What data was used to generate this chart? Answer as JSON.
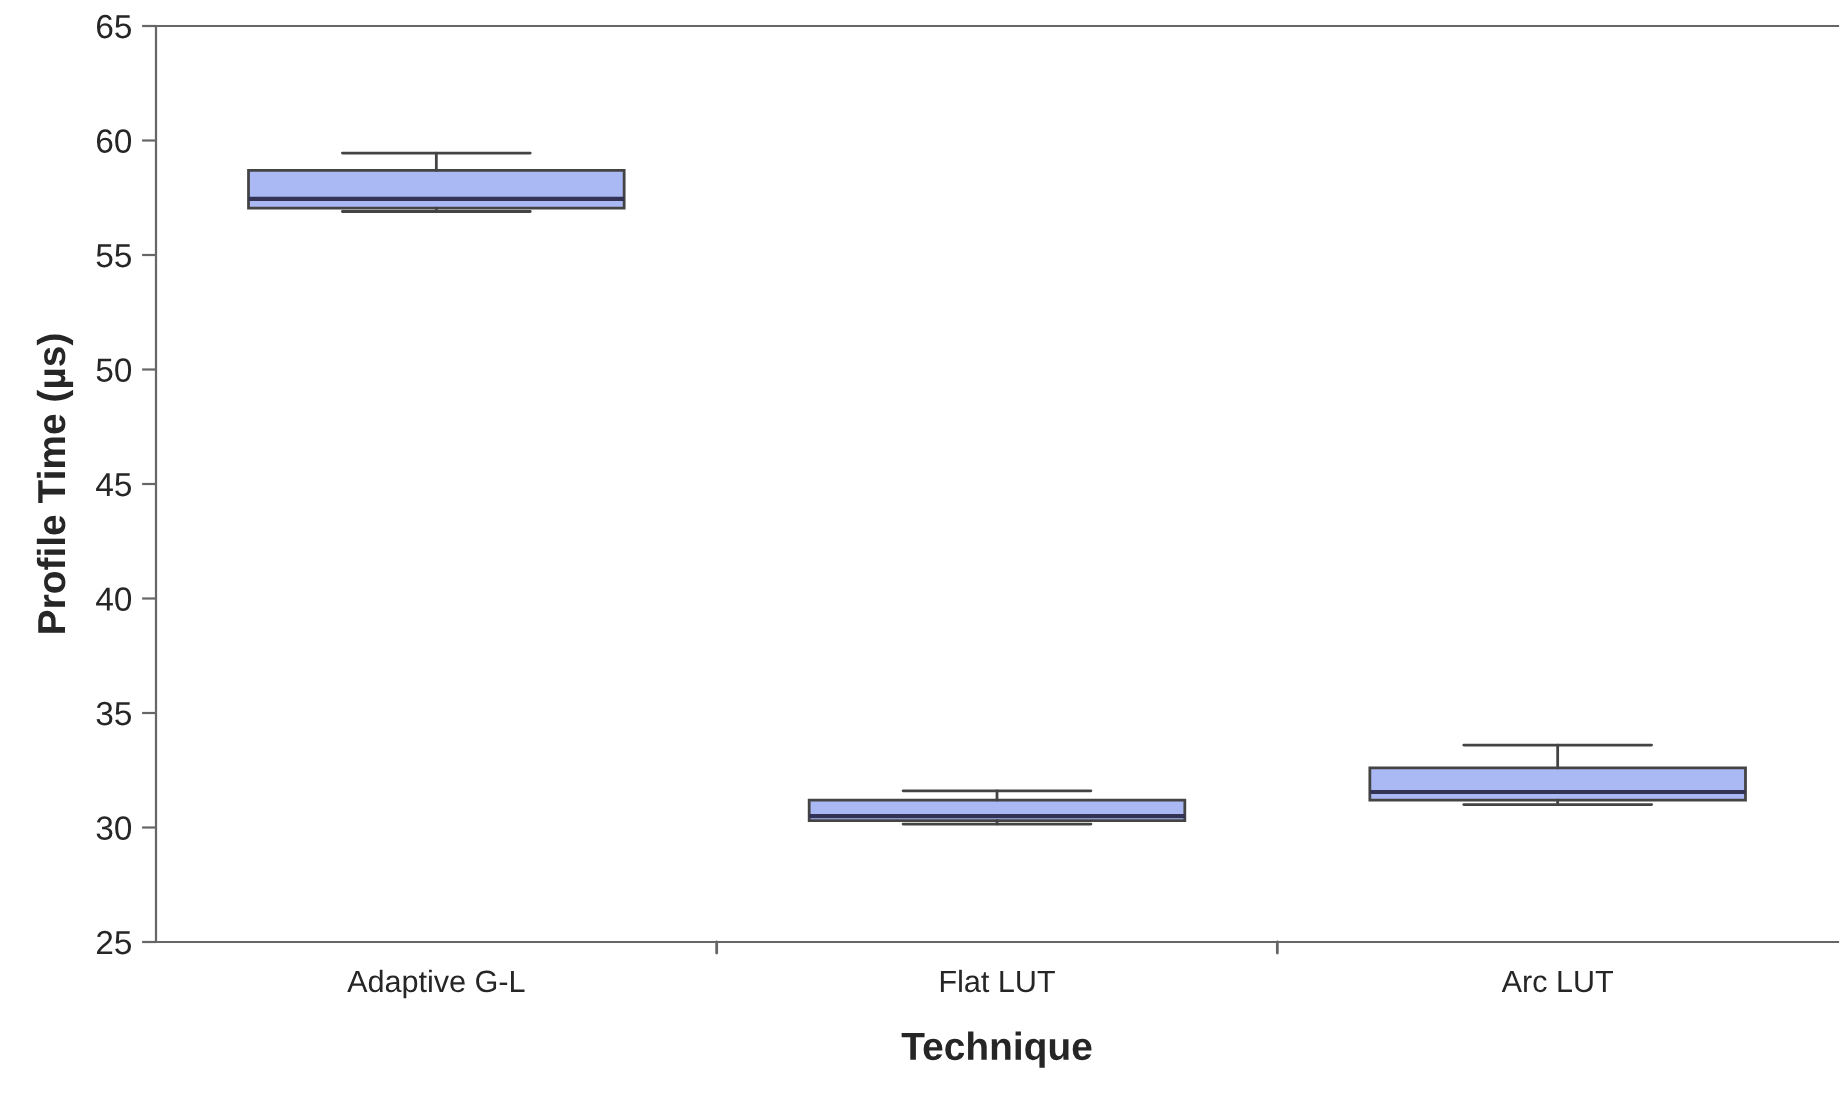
{
  "chart_data": {
    "type": "box",
    "xlabel": "Technique",
    "ylabel": "Profile Time (µs)",
    "categories": [
      "Adaptive G-L",
      "Flat LUT",
      "Arc LUT"
    ],
    "boxes": [
      {
        "low": 56.9,
        "q1": 57.05,
        "median": 57.45,
        "q3": 58.7,
        "high": 59.45
      },
      {
        "low": 30.15,
        "q1": 30.3,
        "median": 30.5,
        "q3": 31.2,
        "high": 31.6
      },
      {
        "low": 31.0,
        "q1": 31.2,
        "median": 31.55,
        "q3": 32.6,
        "high": 33.6
      }
    ],
    "color": "#aab8f4",
    "ylim": [
      25,
      65
    ],
    "yticks": [
      25,
      30,
      35,
      40,
      45,
      50,
      55,
      60,
      65
    ],
    "grid": false,
    "legend": false
  }
}
